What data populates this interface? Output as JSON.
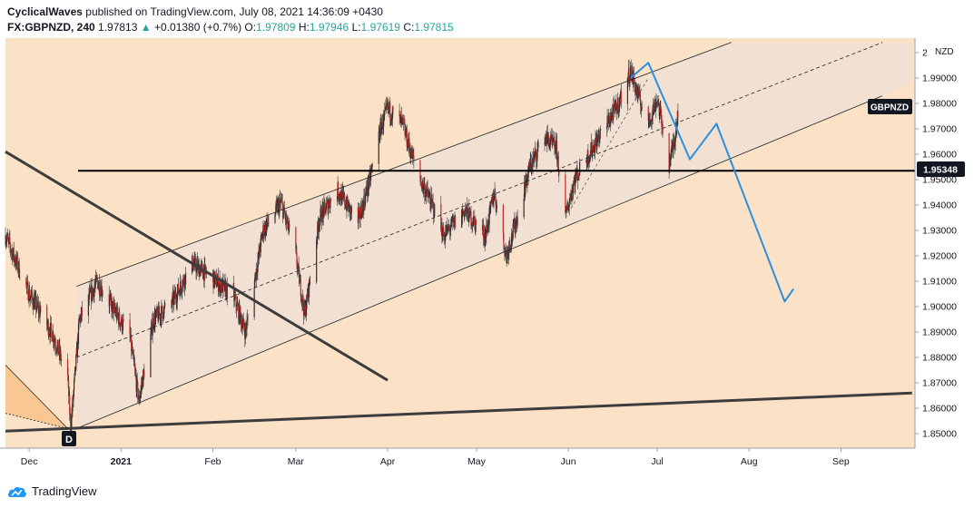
{
  "header": {
    "author": "CyclicalWaves",
    "published_text": "published on TradingView.com, July 08, 2021 14:36:09 +0430",
    "symbol": "FX:GBPNZD, 240",
    "last": "1.97813",
    "change": "+0.01380 (+0.7%)",
    "o_label": "O:",
    "o_value": "1.97809",
    "h_label": "H:",
    "h_value": "1.97946",
    "l_label": "L:",
    "l_value": "1.97619",
    "c_label": "C:",
    "c_value": "1.97815"
  },
  "footer": {
    "brand": "TradingView"
  },
  "colors": {
    "background": "#fbe2c7",
    "channel_fill": "#f2e1d3",
    "candle": "#c62828",
    "wick": "#333333",
    "projection": "#2b8fe0",
    "support_label_bg": "#131722",
    "header_value": "#26a69a"
  },
  "chart_data": {
    "type": "candlestick",
    "symbol": "GBPNZD",
    "currency": "NZD",
    "y_ticks": [
      "2",
      "1.99000",
      "1.98000",
      "1.97000",
      "1.96000",
      "1.95000",
      "1.94000",
      "1.93000",
      "1.92000",
      "1.91000",
      "1.90000",
      "1.89000",
      "1.88000",
      "1.87000",
      "1.86000",
      "1.85000"
    ],
    "x_ticks": [
      "Dec",
      "2021",
      "Feb",
      "Mar",
      "Apr",
      "May",
      "Jun",
      "Jul",
      "Aug",
      "Sep"
    ],
    "support_level": "1.95348",
    "symbol_tag": "GBPNZD",
    "low_marker": "D",
    "series_anchors": [
      [
        "2020-11-23",
        1.928
      ],
      [
        "2020-12-01",
        1.905
      ],
      [
        "2020-12-09",
        1.889
      ],
      [
        "2020-12-14",
        1.872
      ],
      [
        "2020-12-15",
        1.852
      ],
      [
        "2020-12-18",
        1.895
      ],
      [
        "2020-12-24",
        1.91
      ],
      [
        "2021-01-04",
        1.888
      ],
      [
        "2021-01-07",
        1.863
      ],
      [
        "2021-01-12",
        1.895
      ],
      [
        "2021-01-18",
        1.901
      ],
      [
        "2021-01-25",
        1.917
      ],
      [
        "2021-02-01",
        1.911
      ],
      [
        "2021-02-08",
        1.904
      ],
      [
        "2021-02-12",
        1.89
      ],
      [
        "2021-02-18",
        1.93
      ],
      [
        "2021-02-24",
        1.941
      ],
      [
        "2021-03-01",
        1.92
      ],
      [
        "2021-03-04",
        1.897
      ],
      [
        "2021-03-09",
        1.935
      ],
      [
        "2021-03-15",
        1.946
      ],
      [
        "2021-03-22",
        1.933
      ],
      [
        "2021-03-26",
        1.95
      ],
      [
        "2021-03-29",
        1.968
      ],
      [
        "2021-04-01",
        1.978
      ],
      [
        "2021-04-06",
        1.972
      ],
      [
        "2021-04-09",
        1.96
      ],
      [
        "2021-04-12",
        1.95
      ],
      [
        "2021-04-16",
        1.94
      ],
      [
        "2021-04-20",
        1.928
      ],
      [
        "2021-04-27",
        1.938
      ],
      [
        "2021-05-04",
        1.928
      ],
      [
        "2021-05-07",
        1.945
      ],
      [
        "2021-05-11",
        1.92
      ],
      [
        "2021-05-14",
        1.932
      ],
      [
        "2021-05-19",
        1.955
      ],
      [
        "2021-05-24",
        1.967
      ],
      [
        "2021-05-28",
        1.962
      ],
      [
        "2021-05-31",
        1.935
      ],
      [
        "2021-06-03",
        1.95
      ],
      [
        "2021-06-08",
        1.96
      ],
      [
        "2021-06-14",
        1.972
      ],
      [
        "2021-06-18",
        1.98
      ],
      [
        "2021-06-22",
        1.993
      ],
      [
        "2021-06-24",
        1.985
      ],
      [
        "2021-06-28",
        1.972
      ],
      [
        "2021-07-01",
        1.982
      ],
      [
        "2021-07-05",
        1.956
      ],
      [
        "2021-07-07",
        1.967
      ],
      [
        "2021-07-08",
        1.978
      ]
    ],
    "projection_path": [
      [
        "2021-06-22",
        1.99
      ],
      [
        "2021-06-28",
        1.996
      ],
      [
        "2021-07-12",
        1.958
      ],
      [
        "2021-07-21",
        1.972
      ],
      [
        "2021-08-13",
        1.902
      ],
      [
        "2021-08-16",
        1.907
      ]
    ],
    "channel": {
      "upper": [
        [
          "2020-12-17",
          1.908
        ],
        [
          "2021-07-26",
          2.004
        ]
      ],
      "lower": [
        [
          "2020-12-17",
          1.852
        ],
        [
          "2021-09-15",
          1.983
        ]
      ],
      "mid": [
        [
          "2020-12-17",
          1.88
        ],
        [
          "2021-09-15",
          2.004
        ]
      ]
    },
    "trendlines": [
      {
        "name": "descending",
        "points": [
          [
            "2020-11-23",
            1.961
          ],
          [
            "2021-04-01",
            1.871
          ]
        ]
      },
      {
        "name": "base",
        "points": [
          [
            "2020-11-23",
            1.851
          ],
          [
            "2021-09-25",
            1.866
          ]
        ]
      },
      {
        "name": "fan-upper",
        "points": [
          [
            "2020-11-23",
            1.877
          ],
          [
            "2020-12-14",
            1.852
          ]
        ]
      },
      {
        "name": "fan-lower",
        "points": [
          [
            "2020-11-23",
            1.858
          ],
          [
            "2020-12-14",
            1.852
          ]
        ]
      },
      {
        "name": "inner-rise",
        "points": [
          [
            "2021-05-31",
            1.935
          ],
          [
            "2021-06-28",
            1.99
          ]
        ]
      }
    ]
  }
}
